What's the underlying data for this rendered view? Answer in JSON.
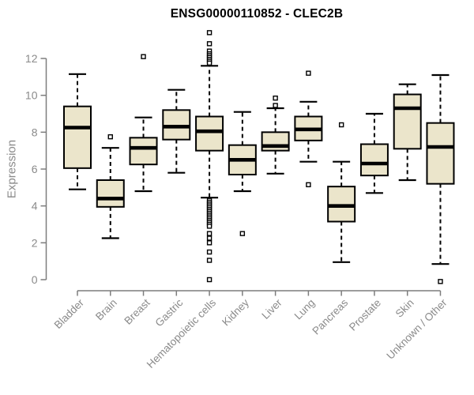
{
  "chart_data": {
    "type": "boxplot",
    "title": "ENSG00000110852 - CLEC2B",
    "ylabel": "Expression",
    "xlabel": "",
    "ylim": [
      0,
      13.6
    ],
    "yticks": [
      0,
      2,
      4,
      6,
      8,
      10,
      12
    ],
    "grid": false,
    "legend": "none",
    "categories": [
      "Bladder",
      "Brain",
      "Breast",
      "Gastric",
      "Hematopoietic cells",
      "Kidney",
      "Liver",
      "Lung",
      "Pancreas",
      "Prostate",
      "Skin",
      "Unknown / Other"
    ],
    "boxes": [
      {
        "category": "Bladder",
        "low": 4.9,
        "q1": 6.05,
        "median": 8.25,
        "q3": 9.4,
        "high": 11.15,
        "outliers": []
      },
      {
        "category": "Brain",
        "low": 2.25,
        "q1": 3.95,
        "median": 4.4,
        "q3": 5.4,
        "high": 7.15,
        "outliers": [
          7.75
        ]
      },
      {
        "category": "Breast",
        "low": 4.8,
        "q1": 6.25,
        "median": 7.15,
        "q3": 7.7,
        "high": 8.8,
        "outliers": [
          12.1
        ]
      },
      {
        "category": "Gastric",
        "low": 5.8,
        "q1": 7.6,
        "median": 8.3,
        "q3": 9.2,
        "high": 10.3,
        "outliers": []
      },
      {
        "category": "Hematopoietic cells",
        "low": 4.45,
        "q1": 7.0,
        "median": 8.05,
        "q3": 8.85,
        "high": 11.6,
        "outliers": [
          13.4,
          12.8,
          12.4,
          12.25,
          12.15,
          12.05,
          11.95,
          11.85,
          11.75,
          4.3,
          4.2,
          4.1,
          4.0,
          3.9,
          3.8,
          3.7,
          3.6,
          3.5,
          3.4,
          3.3,
          3.2,
          3.1,
          3.0,
          2.9,
          2.5,
          2.25,
          2.0,
          1.5,
          1.05,
          0.0
        ]
      },
      {
        "category": "Kidney",
        "low": 4.8,
        "q1": 5.7,
        "median": 6.5,
        "q3": 7.3,
        "high": 9.1,
        "outliers": [
          2.5
        ]
      },
      {
        "category": "Liver",
        "low": 5.75,
        "q1": 7.0,
        "median": 7.25,
        "q3": 8.0,
        "high": 9.3,
        "outliers": [
          9.85,
          9.45
        ]
      },
      {
        "category": "Lung",
        "low": 6.4,
        "q1": 7.55,
        "median": 8.15,
        "q3": 8.85,
        "high": 9.65,
        "outliers": [
          11.2,
          5.15
        ]
      },
      {
        "category": "Pancreas",
        "low": 0.95,
        "q1": 3.15,
        "median": 4.0,
        "q3": 5.05,
        "high": 6.4,
        "outliers": [
          8.4
        ]
      },
      {
        "category": "Prostate",
        "low": 4.7,
        "q1": 5.65,
        "median": 6.3,
        "q3": 7.35,
        "high": 9.0,
        "outliers": []
      },
      {
        "category": "Skin",
        "low": 5.4,
        "q1": 7.1,
        "median": 9.3,
        "q3": 10.05,
        "high": 10.6,
        "outliers": []
      },
      {
        "category": "Unknown / Other",
        "low": 0.85,
        "q1": 5.2,
        "median": 7.2,
        "q3": 8.5,
        "high": 11.1,
        "outliers": [
          -0.1
        ]
      }
    ],
    "colors": {
      "box_fill": "#EBE5CB",
      "box_border": "#000000",
      "median": "#000000",
      "whisker": "#000000",
      "outlier_fill": "#ffffff",
      "axis": "#7d7d7d",
      "tick_text": "#8a8a8a",
      "title_text": "#000000",
      "background": "#ffffff"
    }
  }
}
